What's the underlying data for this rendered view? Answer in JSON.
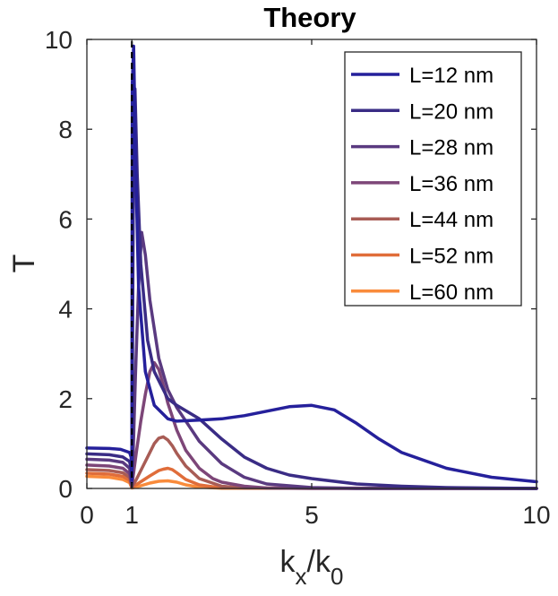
{
  "chart_data": {
    "type": "line",
    "title": "Theory",
    "xlabel": "k_x/k_0",
    "ylabel": "T",
    "xlim": [
      0,
      10
    ],
    "ylim": [
      0,
      10
    ],
    "xticks": [
      0,
      1,
      5,
      10
    ],
    "yticks": [
      0,
      2,
      4,
      6,
      8,
      10
    ],
    "grid": false,
    "legend_position": "top-right",
    "marker_line": {
      "x": 1,
      "style": "dashed",
      "color": "#000000"
    },
    "series": [
      {
        "name": "L=12 nm",
        "color": "#25209b",
        "x": [
          0,
          0.5,
          0.75,
          0.95,
          0.985,
          1.0,
          1.01,
          1.04,
          1.08,
          1.15,
          1.3,
          1.5,
          1.8,
          2.0,
          2.5,
          3.0,
          3.5,
          4.0,
          4.5,
          5.0,
          5.5,
          6.0,
          6.5,
          7.0,
          8.0,
          9.0,
          10.0
        ],
        "y": [
          0.9,
          0.89,
          0.87,
          0.8,
          0.7,
          0.2,
          9.0,
          9.85,
          7.5,
          4.5,
          2.6,
          1.85,
          1.55,
          1.5,
          1.52,
          1.55,
          1.62,
          1.72,
          1.82,
          1.85,
          1.75,
          1.45,
          1.1,
          0.8,
          0.45,
          0.25,
          0.15
        ]
      },
      {
        "name": "L=20 nm",
        "color": "#3a2c85",
        "x": [
          0,
          0.5,
          0.8,
          0.95,
          0.99,
          1.0,
          1.01,
          1.03,
          1.07,
          1.12,
          1.2,
          1.35,
          1.5,
          1.8,
          2.0,
          2.5,
          3.0,
          3.5,
          4.0,
          4.5,
          5.0,
          6.0,
          7.0,
          8.0,
          10.0
        ],
        "y": [
          0.77,
          0.75,
          0.7,
          0.6,
          0.4,
          0.15,
          2.0,
          6.0,
          8.9,
          7.0,
          5.0,
          3.3,
          2.6,
          2.0,
          1.85,
          1.55,
          1.1,
          0.7,
          0.45,
          0.3,
          0.22,
          0.1,
          0.05,
          0.02,
          0.0
        ]
      },
      {
        "name": "L=28 nm",
        "color": "#5a3a80",
        "x": [
          0,
          0.5,
          0.8,
          0.95,
          1.0,
          1.03,
          1.08,
          1.15,
          1.22,
          1.3,
          1.4,
          1.6,
          1.8,
          2.0,
          2.5,
          3.0,
          3.5,
          4.0,
          5.0,
          6.0,
          10.0
        ],
        "y": [
          0.65,
          0.63,
          0.58,
          0.45,
          0.1,
          0.8,
          2.5,
          4.5,
          5.7,
          5.2,
          4.2,
          2.9,
          2.2,
          1.8,
          1.05,
          0.55,
          0.25,
          0.1,
          0.02,
          0.0,
          0.0
        ]
      },
      {
        "name": "L=36 nm",
        "color": "#7d4678",
        "x": [
          0,
          0.5,
          0.8,
          0.95,
          1.0,
          1.1,
          1.2,
          1.3,
          1.4,
          1.5,
          1.6,
          1.7,
          1.8,
          2.0,
          2.2,
          2.5,
          2.8,
          3.0,
          3.5,
          4.0,
          5.0,
          10.0
        ],
        "y": [
          0.52,
          0.5,
          0.45,
          0.33,
          0.05,
          0.8,
          1.5,
          2.1,
          2.6,
          2.8,
          2.65,
          2.3,
          1.9,
          1.3,
          0.85,
          0.45,
          0.22,
          0.14,
          0.05,
          0.01,
          0.0,
          0.0
        ]
      },
      {
        "name": "L=44 nm",
        "color": "#a85c55",
        "x": [
          0,
          0.5,
          0.8,
          0.95,
          1.0,
          1.1,
          1.3,
          1.5,
          1.6,
          1.7,
          1.8,
          1.9,
          2.0,
          2.2,
          2.5,
          3.0,
          3.5,
          10.0
        ],
        "y": [
          0.42,
          0.4,
          0.35,
          0.25,
          0.03,
          0.2,
          0.6,
          1.0,
          1.12,
          1.15,
          1.08,
          0.95,
          0.78,
          0.5,
          0.22,
          0.05,
          0.01,
          0.0
        ]
      },
      {
        "name": "L=52 nm",
        "color": "#e06d3a",
        "x": [
          0,
          0.5,
          0.8,
          0.95,
          1.0,
          1.2,
          1.4,
          1.6,
          1.7,
          1.8,
          1.9,
          2.0,
          2.2,
          2.5,
          3.0,
          10.0
        ],
        "y": [
          0.34,
          0.32,
          0.27,
          0.18,
          0.02,
          0.15,
          0.28,
          0.4,
          0.43,
          0.45,
          0.42,
          0.35,
          0.2,
          0.08,
          0.01,
          0.0
        ]
      },
      {
        "name": "L=60 nm",
        "color": "#f98b3b",
        "x": [
          0,
          0.5,
          0.8,
          0.95,
          1.0,
          1.2,
          1.4,
          1.6,
          1.8,
          2.0,
          2.2,
          2.5,
          3.0,
          10.0
        ],
        "y": [
          0.27,
          0.25,
          0.2,
          0.13,
          0.01,
          0.06,
          0.12,
          0.16,
          0.17,
          0.14,
          0.08,
          0.03,
          0.005,
          0.0
        ]
      }
    ]
  }
}
